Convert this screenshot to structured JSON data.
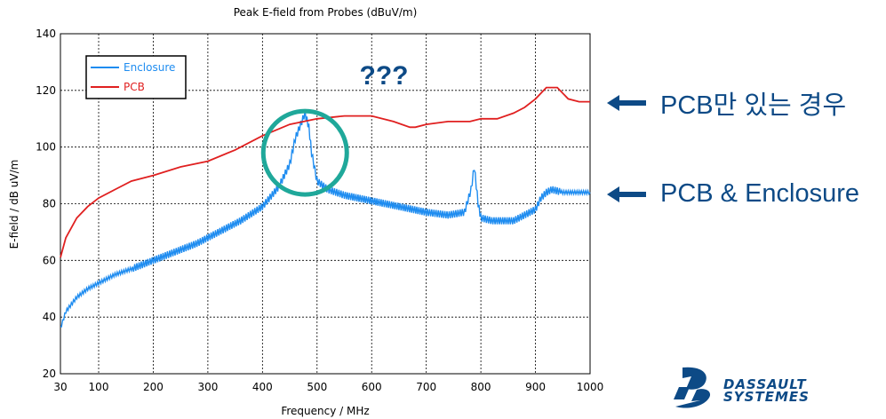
{
  "chart_data": {
    "type": "line",
    "title": "Peak E-field from Probes (dBuV/m)",
    "xlabel": "Frequency / MHz",
    "ylabel": "E-field / dB uV/m",
    "xlim": [
      30,
      1000
    ],
    "ylim": [
      20,
      140
    ],
    "xticks": [
      30,
      100,
      200,
      300,
      400,
      500,
      600,
      700,
      800,
      900,
      1000
    ],
    "yticks": [
      20,
      40,
      60,
      80,
      100,
      120,
      140
    ],
    "grid": true,
    "legend_position": "top-left",
    "series": [
      {
        "name": "Enclosure",
        "color": "#1e8cf0",
        "x": [
          30,
          40,
          60,
          80,
          100,
          130,
          160,
          200,
          240,
          280,
          300,
          330,
          360,
          400,
          430,
          450,
          460,
          470,
          478,
          485,
          490,
          500,
          520,
          550,
          600,
          650,
          700,
          740,
          770,
          782,
          788,
          795,
          800,
          820,
          860,
          880,
          900,
          910,
          920,
          930,
          950,
          980,
          1000
        ],
        "y": [
          36,
          42,
          47,
          50,
          52,
          55,
          57,
          60,
          63,
          66,
          68,
          71,
          74,
          79,
          86,
          94,
          103,
          108,
          112,
          107,
          98,
          88,
          85,
          83,
          81,
          79,
          77,
          76,
          77,
          85,
          93,
          80,
          75,
          74,
          74,
          76,
          78,
          82,
          84,
          85,
          84,
          84,
          84
        ]
      },
      {
        "name": "PCB",
        "color": "#e02020",
        "x": [
          30,
          40,
          60,
          80,
          100,
          130,
          160,
          200,
          250,
          300,
          350,
          400,
          450,
          500,
          550,
          600,
          640,
          670,
          680,
          700,
          740,
          780,
          800,
          830,
          860,
          880,
          900,
          920,
          940,
          960,
          980,
          1000
        ],
        "y": [
          61,
          68,
          75,
          79,
          82,
          85,
          88,
          90,
          93,
          95,
          99,
          104,
          108,
          110,
          111,
          111,
          109,
          107,
          107,
          108,
          109,
          109,
          110,
          110,
          112,
          114,
          117,
          121,
          121,
          117,
          116,
          116
        ]
      }
    ],
    "annotations": [
      {
        "text": "???",
        "color": "#0d4a86"
      },
      {
        "text": "PCB만 있는 경우",
        "color": "#0d4a86"
      },
      {
        "text": "PCB & Enclosure",
        "color": "#0d4a86"
      }
    ],
    "highlight_circle": {
      "x": 478,
      "y": 108,
      "color": "#1fa89a"
    }
  },
  "logo": {
    "line1": "DASSAULT",
    "line2": "SYSTEMES",
    "color": "#0d4a86"
  }
}
